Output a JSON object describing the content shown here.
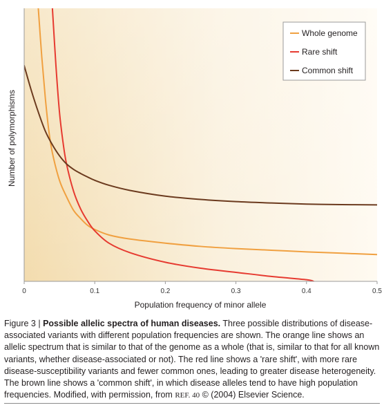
{
  "chart_data": {
    "type": "line",
    "title": "",
    "xlabel": "Population frequency of minor allele",
    "ylabel": "Number of polymorphisms",
    "xlim": [
      0,
      0.5
    ],
    "ylim": [
      0,
      1
    ],
    "y_ticks_shown": false,
    "x_ticks": [
      "0",
      "0.1",
      "0.2",
      "0.3",
      "0.4",
      "0.5"
    ],
    "grid": false,
    "legend_position": "top-right",
    "background": "gradient cream-to-tan",
    "series": [
      {
        "name": "Whole genome",
        "color": "#f0a040",
        "x": [
          0.02,
          0.025,
          0.03,
          0.035,
          0.04,
          0.05,
          0.06,
          0.07,
          0.08,
          0.09,
          0.1,
          0.12,
          0.15,
          0.2,
          0.25,
          0.3,
          0.35,
          0.4,
          0.45,
          0.5
        ],
        "y": [
          1.0,
          0.82,
          0.67,
          0.55,
          0.47,
          0.37,
          0.31,
          0.26,
          0.23,
          0.205,
          0.19,
          0.17,
          0.155,
          0.14,
          0.128,
          0.12,
          0.114,
          0.108,
          0.103,
          0.098
        ]
      },
      {
        "name": "Rare shift",
        "color": "#e63a30",
        "x": [
          0.04,
          0.045,
          0.05,
          0.055,
          0.06,
          0.07,
          0.08,
          0.09,
          0.1,
          0.12,
          0.15,
          0.2,
          0.25,
          0.3,
          0.35,
          0.4,
          0.41
        ],
        "y": [
          1.0,
          0.79,
          0.62,
          0.51,
          0.43,
          0.33,
          0.265,
          0.22,
          0.185,
          0.14,
          0.105,
          0.07,
          0.048,
          0.033,
          0.018,
          0.006,
          0.0
        ]
      },
      {
        "name": "Common shift",
        "color": "#6b3a1e",
        "x": [
          0.0,
          0.01,
          0.02,
          0.03,
          0.04,
          0.05,
          0.06,
          0.07,
          0.08,
          0.09,
          0.1,
          0.12,
          0.15,
          0.2,
          0.25,
          0.3,
          0.35,
          0.4,
          0.45,
          0.5
        ],
        "y": [
          0.79,
          0.7,
          0.62,
          0.55,
          0.5,
          0.46,
          0.43,
          0.41,
          0.395,
          0.382,
          0.37,
          0.352,
          0.333,
          0.312,
          0.3,
          0.292,
          0.287,
          0.283,
          0.281,
          0.28
        ]
      }
    ]
  },
  "caption": {
    "label": "Figure 3 | ",
    "title": "Possible allelic spectra of human diseases.",
    "body": " Three possible distributions of disease-associated variants with different population frequencies are shown. The orange line shows an allelic spectrum that is similar to that of the genome as a whole (that is, similar to that for all known variants, whether disease-associated or not). The red line shows a 'rare shift', with more rare disease-susceptibility variants and fewer common ones, leading to greater disease heterogeneity. The brown line shows a 'common shift', in which disease alleles tend to have high population frequencies. Modified, with permission, from ",
    "ref": "REF. 40",
    "tail": " © (2004) Elsevier Science."
  }
}
